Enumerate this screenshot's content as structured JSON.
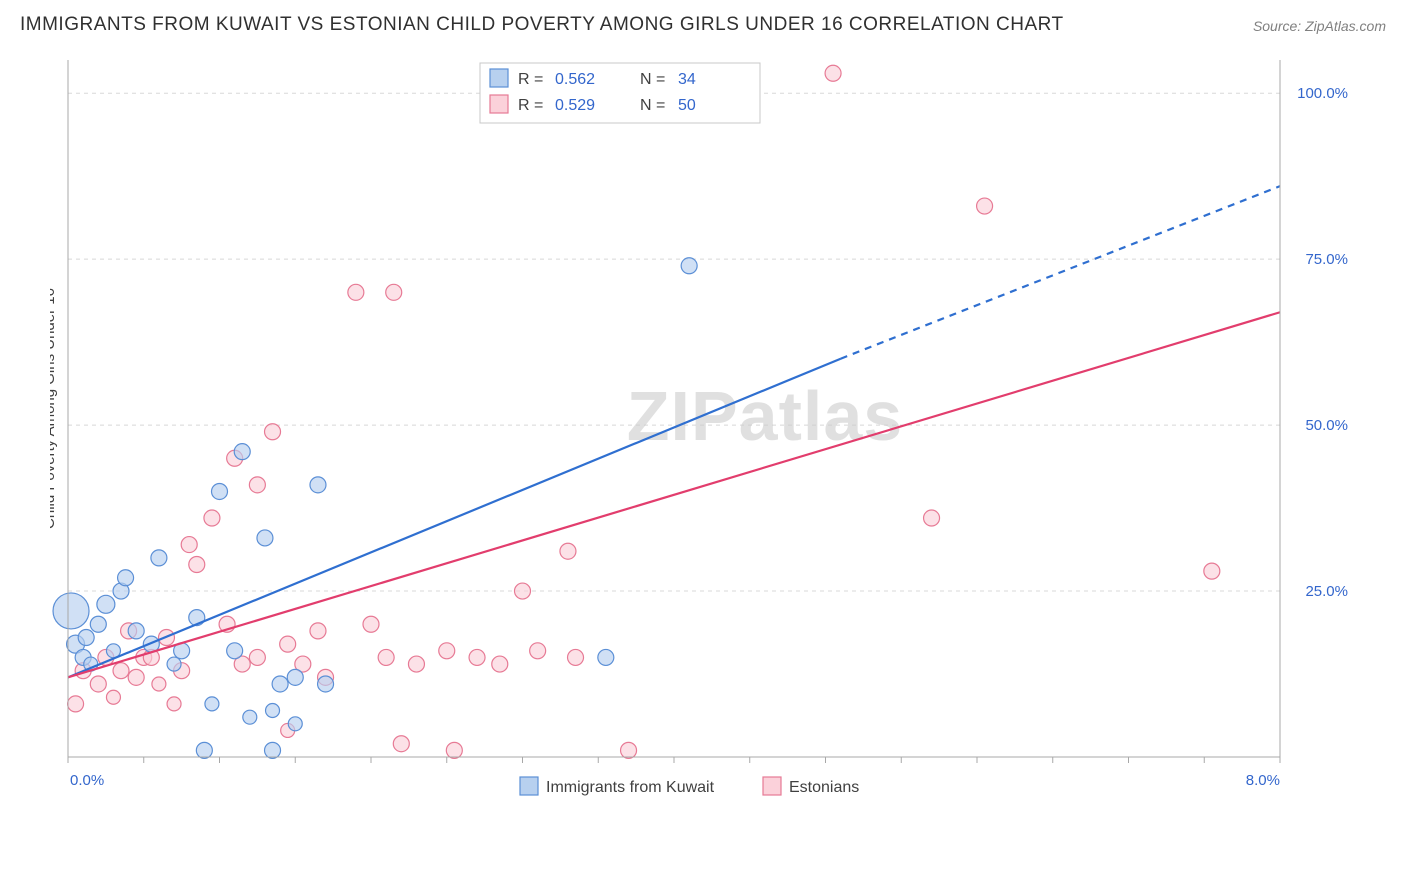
{
  "title": "IMMIGRANTS FROM KUWAIT VS ESTONIAN CHILD POVERTY AMONG GIRLS UNDER 16 CORRELATION CHART",
  "source_label": "Source: ",
  "source_value": "ZipAtlas.com",
  "watermark": "ZIPatlas",
  "y_axis_label": "Child Poverty Among Girls Under 16",
  "chart": {
    "type": "scatter",
    "x_range": [
      0,
      8
    ],
    "y_range": [
      0,
      105
    ],
    "x_ticks": [
      {
        "v": 0,
        "label": "0.0%"
      },
      {
        "v": 8,
        "label": "8.0%"
      }
    ],
    "y_ticks": [
      {
        "v": 25,
        "label": "25.0%"
      },
      {
        "v": 50,
        "label": "50.0%"
      },
      {
        "v": 75,
        "label": "75.0%"
      },
      {
        "v": 100,
        "label": "100.0%"
      }
    ],
    "background": "#ffffff",
    "grid_color": "#d8d8d8",
    "axis_color": "#a8a8a8",
    "tick_label_color": "#3366cc",
    "series": [
      {
        "id": "kuwait",
        "label": "Immigrants from Kuwait",
        "fill": "#b7d0ef",
        "stroke": "#5b8fd6",
        "trend_color": "#2f6fd0",
        "trend_width": 2.2,
        "R": "0.562",
        "N": "34",
        "trend": {
          "x1": 0,
          "y1": 12,
          "x2": 5.1,
          "y2": 60,
          "dash_from_x": 5.1,
          "x3": 8,
          "y3": 86
        },
        "points": [
          {
            "x": 0.02,
            "y": 22,
            "r": 18
          },
          {
            "x": 0.05,
            "y": 17,
            "r": 9
          },
          {
            "x": 0.1,
            "y": 15,
            "r": 8
          },
          {
            "x": 0.12,
            "y": 18,
            "r": 8
          },
          {
            "x": 0.15,
            "y": 14,
            "r": 7
          },
          {
            "x": 0.2,
            "y": 20,
            "r": 8
          },
          {
            "x": 0.25,
            "y": 23,
            "r": 9
          },
          {
            "x": 0.3,
            "y": 16,
            "r": 7
          },
          {
            "x": 0.35,
            "y": 25,
            "r": 8
          },
          {
            "x": 0.38,
            "y": 27,
            "r": 8
          },
          {
            "x": 0.45,
            "y": 19,
            "r": 8
          },
          {
            "x": 0.55,
            "y": 17,
            "r": 8
          },
          {
            "x": 0.6,
            "y": 30,
            "r": 8
          },
          {
            "x": 0.7,
            "y": 14,
            "r": 7
          },
          {
            "x": 0.75,
            "y": 16,
            "r": 8
          },
          {
            "x": 0.85,
            "y": 21,
            "r": 8
          },
          {
            "x": 0.9,
            "y": 1,
            "r": 8
          },
          {
            "x": 0.95,
            "y": 8,
            "r": 7
          },
          {
            "x": 1.0,
            "y": 40,
            "r": 8
          },
          {
            "x": 1.1,
            "y": 16,
            "r": 8
          },
          {
            "x": 1.15,
            "y": 46,
            "r": 8
          },
          {
            "x": 1.2,
            "y": 6,
            "r": 7
          },
          {
            "x": 1.3,
            "y": 33,
            "r": 8
          },
          {
            "x": 1.35,
            "y": 1,
            "r": 8
          },
          {
            "x": 1.35,
            "y": 7,
            "r": 7
          },
          {
            "x": 1.4,
            "y": 11,
            "r": 8
          },
          {
            "x": 1.5,
            "y": 12,
            "r": 8
          },
          {
            "x": 1.5,
            "y": 5,
            "r": 7
          },
          {
            "x": 1.65,
            "y": 41,
            "r": 8
          },
          {
            "x": 1.7,
            "y": 11,
            "r": 8
          },
          {
            "x": 3.55,
            "y": 15,
            "r": 8
          },
          {
            "x": 4.1,
            "y": 74,
            "r": 8
          }
        ]
      },
      {
        "id": "estonians",
        "label": "Estonians",
        "fill": "#fbd1da",
        "stroke": "#e77a95",
        "trend_color": "#e23d6d",
        "trend_width": 2.2,
        "R": "0.529",
        "N": "50",
        "trend": {
          "x1": 0,
          "y1": 12,
          "x2": 8,
          "y2": 67,
          "dash_from_x": 99
        },
        "points": [
          {
            "x": 0.05,
            "y": 8,
            "r": 8
          },
          {
            "x": 0.1,
            "y": 13,
            "r": 8
          },
          {
            "x": 0.2,
            "y": 11,
            "r": 8
          },
          {
            "x": 0.25,
            "y": 15,
            "r": 8
          },
          {
            "x": 0.3,
            "y": 9,
            "r": 7
          },
          {
            "x": 0.35,
            "y": 13,
            "r": 8
          },
          {
            "x": 0.4,
            "y": 19,
            "r": 8
          },
          {
            "x": 0.45,
            "y": 12,
            "r": 8
          },
          {
            "x": 0.5,
            "y": 15,
            "r": 8
          },
          {
            "x": 0.55,
            "y": 15,
            "r": 8
          },
          {
            "x": 0.6,
            "y": 11,
            "r": 7
          },
          {
            "x": 0.65,
            "y": 18,
            "r": 8
          },
          {
            "x": 0.7,
            "y": 8,
            "r": 7
          },
          {
            "x": 0.75,
            "y": 13,
            "r": 8
          },
          {
            "x": 0.8,
            "y": 32,
            "r": 8
          },
          {
            "x": 0.85,
            "y": 29,
            "r": 8
          },
          {
            "x": 0.95,
            "y": 36,
            "r": 8
          },
          {
            "x": 1.05,
            "y": 20,
            "r": 8
          },
          {
            "x": 1.1,
            "y": 45,
            "r": 8
          },
          {
            "x": 1.15,
            "y": 14,
            "r": 8
          },
          {
            "x": 1.25,
            "y": 15,
            "r": 8
          },
          {
            "x": 1.25,
            "y": 41,
            "r": 8
          },
          {
            "x": 1.35,
            "y": 49,
            "r": 8
          },
          {
            "x": 1.45,
            "y": 17,
            "r": 8
          },
          {
            "x": 1.45,
            "y": 4,
            "r": 7
          },
          {
            "x": 1.55,
            "y": 14,
            "r": 8
          },
          {
            "x": 1.65,
            "y": 19,
            "r": 8
          },
          {
            "x": 1.7,
            "y": 12,
            "r": 8
          },
          {
            "x": 1.9,
            "y": 70,
            "r": 8
          },
          {
            "x": 2.0,
            "y": 20,
            "r": 8
          },
          {
            "x": 2.1,
            "y": 15,
            "r": 8
          },
          {
            "x": 2.15,
            "y": 70,
            "r": 8
          },
          {
            "x": 2.2,
            "y": 2,
            "r": 8
          },
          {
            "x": 2.3,
            "y": 14,
            "r": 8
          },
          {
            "x": 2.5,
            "y": 16,
            "r": 8
          },
          {
            "x": 2.55,
            "y": 1,
            "r": 8
          },
          {
            "x": 2.7,
            "y": 15,
            "r": 8
          },
          {
            "x": 2.85,
            "y": 14,
            "r": 8
          },
          {
            "x": 3.0,
            "y": 25,
            "r": 8
          },
          {
            "x": 3.1,
            "y": 16,
            "r": 8
          },
          {
            "x": 3.3,
            "y": 31,
            "r": 8
          },
          {
            "x": 3.35,
            "y": 15,
            "r": 8
          },
          {
            "x": 3.7,
            "y": 1,
            "r": 8
          },
          {
            "x": 5.05,
            "y": 103,
            "r": 8
          },
          {
            "x": 5.7,
            "y": 36,
            "r": 8
          },
          {
            "x": 6.05,
            "y": 83,
            "r": 8
          },
          {
            "x": 7.55,
            "y": 28,
            "r": 8
          }
        ]
      }
    ],
    "bottom_legend": [
      {
        "fill": "#b7d0ef",
        "stroke": "#5b8fd6",
        "label": "Immigrants from Kuwait"
      },
      {
        "fill": "#fbd1da",
        "stroke": "#e77a95",
        "label": "Estonians"
      }
    ],
    "top_legend": {
      "rows": [
        {
          "sw_fill": "#b7d0ef",
          "sw_stroke": "#5b8fd6",
          "R_label": "R =",
          "R_val": "0.562",
          "N_label": "N =",
          "N_val": "34"
        },
        {
          "sw_fill": "#fbd1da",
          "sw_stroke": "#e77a95",
          "R_label": "R =",
          "R_val": "0.529",
          "N_label": "N =",
          "N_val": "50"
        }
      ]
    }
  }
}
